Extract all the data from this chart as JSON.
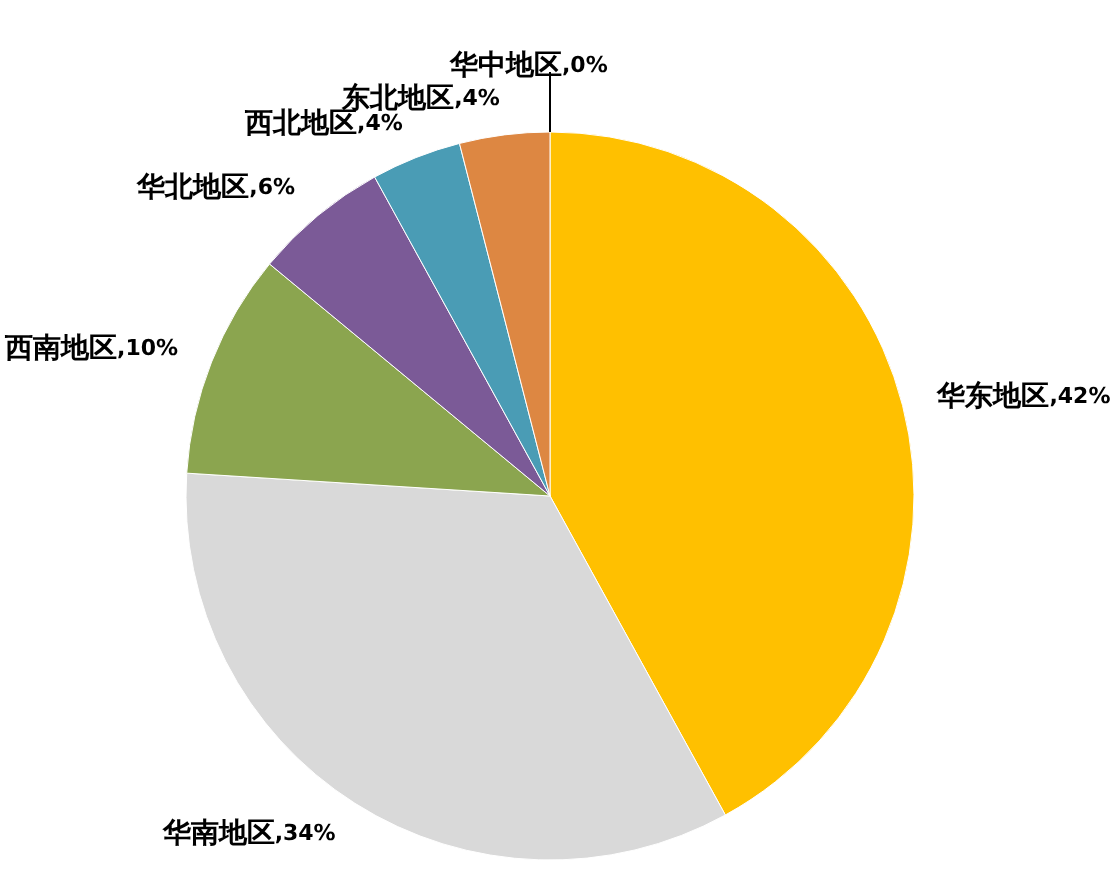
{
  "chart_data": {
    "type": "pie",
    "categories": [
      "华东地区",
      "华南地区",
      "西南地区",
      "华北地区",
      "西北地区",
      "东北地区",
      "华中地区"
    ],
    "values": [
      42,
      34,
      10,
      6,
      4,
      4,
      0
    ],
    "colors": [
      "#ffc000",
      "#d9d9d9",
      "#8ba54f",
      "#7b5a97",
      "#4a9cb5",
      "#dd8742",
      "#a5a5a5"
    ],
    "value_labels": [
      ",42%",
      ",34%",
      ",10%",
      ",6%",
      ",4%",
      ",4%",
      ",0%"
    ],
    "legend": false
  }
}
